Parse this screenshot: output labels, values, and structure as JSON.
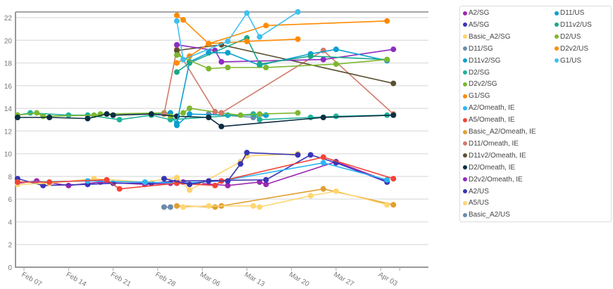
{
  "chart_data": {
    "type": "line",
    "ylim": [
      0,
      22
    ],
    "yticks": [
      0,
      2,
      4,
      6,
      8,
      10,
      12,
      14,
      16,
      18,
      20,
      22
    ],
    "xticks": [
      "Feb 07",
      "Feb 14",
      "Feb 21",
      "Feb 28",
      "Mar 06",
      "Mar 13",
      "Mar 20",
      "Mar 27",
      "Apr 03"
    ],
    "grid": true,
    "legend_position": "right",
    "series": [
      {
        "name": "A2/SG",
        "color": "#9c27b0",
        "points": [
          [
            "Feb 06",
            7.4
          ],
          [
            "Feb 09",
            7.6
          ],
          [
            "Feb 14",
            7.2
          ],
          [
            "Feb 19",
            7.5
          ],
          [
            "Feb 26",
            7.3
          ],
          [
            "Mar 01",
            7.4
          ],
          [
            "Mar 03",
            7.5
          ],
          [
            "Mar 10",
            7.2
          ],
          [
            "Mar 15",
            7.5
          ],
          [
            "Mar 16",
            7.3
          ],
          [
            "Mar 27",
            9.3
          ],
          [
            "Apr 04",
            7.6
          ]
        ]
      },
      {
        "name": "A5/SG",
        "color": "#3a35b8",
        "points": [
          [
            "Feb 06",
            7.8
          ],
          [
            "Feb 10",
            7.2
          ],
          [
            "Feb 17",
            7.3
          ],
          [
            "Feb 21",
            7.4
          ],
          [
            "Feb 27",
            7.4
          ],
          [
            "Mar 02",
            7.6
          ],
          [
            "Mar 16",
            7.7
          ],
          [
            "Mar 23",
            9.9
          ],
          [
            "Mar 27",
            9.2
          ],
          [
            "Apr 04",
            7.5
          ]
        ]
      },
      {
        "name": "Basic_A2/SG",
        "color": "#ffd36b",
        "points": [
          [
            "Feb 06",
            7.3
          ],
          [
            "Feb 11",
            7.4
          ],
          [
            "Feb 18",
            7.8
          ],
          [
            "Feb 26",
            7.5
          ],
          [
            "Mar 02",
            7.9
          ],
          [
            "Mar 04",
            6.8
          ],
          [
            "Mar 12",
            9.3
          ],
          [
            "Mar 13",
            9.8
          ],
          [
            "Mar 21",
            10.0
          ]
        ]
      },
      {
        "name": "D11/SG",
        "color": "#6a8caf",
        "points": [
          [
            "Mar 07",
            13.5
          ],
          [
            "Mar 14",
            13.2
          ],
          [
            "Mar 16",
            13.4
          ]
        ]
      },
      {
        "name": "D11v2/SG",
        "color": "#0a9fd0",
        "points": [
          [
            "Feb 27",
            13.5
          ],
          [
            "Mar 01",
            13.6
          ],
          [
            "Mar 02",
            12.5
          ],
          [
            "Mar 04",
            13.5
          ],
          [
            "Mar 10",
            13.4
          ],
          [
            "Mar 16",
            13.4
          ]
        ]
      },
      {
        "name": "D2/SG",
        "color": "#1fb39a",
        "points": [
          [
            "Feb 06",
            13.4
          ],
          [
            "Feb 08",
            13.6
          ],
          [
            "Feb 14",
            13.4
          ],
          [
            "Feb 17",
            13.4
          ],
          [
            "Feb 22",
            13.0
          ],
          [
            "Feb 27",
            13.4
          ],
          [
            "Mar 01",
            13.0
          ],
          [
            "Mar 14",
            13.5
          ],
          [
            "Mar 15",
            13.0
          ],
          [
            "Mar 23",
            13.2
          ],
          [
            "Mar 27",
            13.3
          ],
          [
            "Apr 04",
            13.4
          ]
        ]
      },
      {
        "name": "D2v2/SG",
        "color": "#7cb82f",
        "points": [
          [
            "Feb 06",
            13.4
          ],
          [
            "Feb 09",
            13.6
          ],
          [
            "Feb 10",
            13.3
          ],
          [
            "Feb 18",
            13.4
          ],
          [
            "Feb 19",
            13.5
          ],
          [
            "Feb 29",
            13.6
          ],
          [
            "Mar 01",
            13.3
          ],
          [
            "Mar 03",
            13.6
          ],
          [
            "Mar 04",
            14.0
          ],
          [
            "Mar 09",
            13.6
          ],
          [
            "Mar 12",
            13.4
          ],
          [
            "Mar 15",
            13.5
          ],
          [
            "Mar 21",
            13.6
          ]
        ]
      },
      {
        "name": "G1/SG",
        "color": "#ff8a00",
        "points": [
          [
            "Mar 02",
            22.2
          ],
          [
            "Mar 03",
            21.8
          ],
          [
            "Mar 07",
            19.7
          ],
          [
            "Mar 16",
            21.3
          ],
          [
            "Apr 04",
            21.7
          ]
        ]
      },
      {
        "name": "A2/Omeath, IE",
        "color": "#29b6f6",
        "points": [
          [
            "Feb 06",
            7.5
          ],
          [
            "Feb 17",
            7.6
          ],
          [
            "Feb 26",
            7.5
          ],
          [
            "Mar 02",
            7.4
          ],
          [
            "Mar 09",
            7.6
          ],
          [
            "Mar 25",
            9.2
          ],
          [
            "Apr 04",
            7.7
          ]
        ]
      },
      {
        "name": "A5/Omeath, IE",
        "color": "#f44336",
        "points": [
          [
            "Feb 06",
            7.5
          ],
          [
            "Feb 11",
            7.5
          ],
          [
            "Feb 20",
            7.7
          ],
          [
            "Feb 22",
            6.9
          ],
          [
            "Mar 02",
            7.4
          ],
          [
            "Mar 08",
            7.2
          ],
          [
            "Mar 09",
            7.6
          ],
          [
            "Mar 25",
            9.7
          ],
          [
            "Apr 05",
            7.8
          ]
        ]
      },
      {
        "name": "Basic_A2/Omeath, IE",
        "color": "#e0a030",
        "points": [
          [
            "Mar 02",
            5.4
          ],
          [
            "Mar 08",
            5.3
          ],
          [
            "Mar 09",
            5.4
          ],
          [
            "Mar 25",
            6.9
          ],
          [
            "Apr 05",
            5.5
          ]
        ]
      },
      {
        "name": "D11/Omeath, IE",
        "color": "#d07a6a",
        "points": [
          [
            "Feb 29",
            13.5
          ],
          [
            "Mar 02",
            19.2
          ],
          [
            "Mar 08",
            13.7
          ],
          [
            "Mar 09",
            13.6
          ],
          [
            "Mar 25",
            19.1
          ],
          [
            "Apr 05",
            13.5
          ]
        ]
      },
      {
        "name": "D11v2/Omeath, IE",
        "color": "#5a5030",
        "points": [
          [
            "Mar 02",
            19.1
          ],
          [
            "Mar 09",
            19.6
          ],
          [
            "Apr 05",
            16.2
          ]
        ]
      },
      {
        "name": "D2/Omeath, IE",
        "color": "#0b2d40",
        "points": [
          [
            "Feb 06",
            13.2
          ],
          [
            "Feb 11",
            13.2
          ],
          [
            "Feb 17",
            13.1
          ],
          [
            "Feb 20",
            13.5
          ],
          [
            "Feb 21",
            13.4
          ],
          [
            "Feb 27",
            13.5
          ],
          [
            "Mar 02",
            13.3
          ],
          [
            "Mar 07",
            13.2
          ],
          [
            "Mar 09",
            12.4
          ],
          [
            "Mar 25",
            13.2
          ],
          [
            "Apr 05",
            13.4
          ]
        ]
      },
      {
        "name": "D2v2/Omeath, IE",
        "color": "#8e2cc0",
        "points": [
          [
            "Mar 02",
            19.6
          ],
          [
            "Mar 08",
            19.1
          ],
          [
            "Mar 09",
            18.1
          ],
          [
            "Mar 25",
            18.3
          ],
          [
            "Apr 05",
            19.2
          ]
        ]
      },
      {
        "name": "A2/US",
        "color": "#3535b0",
        "points": [
          [
            "Feb 29",
            7.8
          ],
          [
            "Mar 04",
            7.3
          ],
          [
            "Mar 07",
            7.6
          ],
          [
            "Mar 10",
            7.6
          ],
          [
            "Mar 12",
            9.1
          ],
          [
            "Mar 13",
            10.1
          ],
          [
            "Mar 21",
            9.9
          ]
        ]
      },
      {
        "name": "A5/US",
        "color": "#ffd770",
        "points": [
          [
            "Mar 03",
            5.3
          ],
          [
            "Mar 07",
            5.4
          ],
          [
            "Mar 14",
            5.4
          ],
          [
            "Mar 15",
            5.3
          ],
          [
            "Mar 23",
            6.3
          ],
          [
            "Mar 27",
            6.7
          ],
          [
            "Apr 04",
            5.5
          ]
        ]
      },
      {
        "name": "Basic_A2/US",
        "color": "#6a8caf",
        "points": [
          [
            "Feb 29",
            5.3
          ],
          [
            "Mar 01",
            5.3
          ]
        ]
      },
      {
        "name": "D11/US",
        "color": "#0a9fd0",
        "points": [
          [
            "Mar 02",
            12.7
          ],
          [
            "Mar 04",
            18.1
          ],
          [
            "Mar 07",
            18.9
          ],
          [
            "Mar 10",
            18.9
          ],
          [
            "Mar 15",
            17.8
          ],
          [
            "Mar 23",
            18.8
          ],
          [
            "Mar 27",
            19.2
          ],
          [
            "Apr 04",
            18.2
          ]
        ]
      },
      {
        "name": "D11v2/US",
        "color": "#1aa88a",
        "points": [
          [
            "Mar 02",
            17.2
          ],
          [
            "Mar 04",
            18.0
          ],
          [
            "Mar 13",
            20.2
          ],
          [
            "Mar 15",
            17.9
          ],
          [
            "Mar 23",
            18.6
          ],
          [
            "Apr 04",
            18.3
          ]
        ]
      },
      {
        "name": "D2/US",
        "color": "#7cb82f",
        "points": [
          [
            "Mar 02",
            18.7
          ],
          [
            "Mar 07",
            17.5
          ],
          [
            "Mar 10",
            17.6
          ],
          [
            "Mar 16",
            17.6
          ],
          [
            "Mar 27",
            17.9
          ],
          [
            "Apr 04",
            18.3
          ]
        ]
      },
      {
        "name": "D2v2/US",
        "color": "#ff8a00",
        "points": [
          [
            "Mar 02",
            18.0
          ],
          [
            "Mar 04",
            18.6
          ],
          [
            "Mar 07",
            19.7
          ],
          [
            "Mar 13",
            19.9
          ],
          [
            "Mar 21",
            20.1
          ]
        ]
      },
      {
        "name": "G1/US",
        "color": "#3fc0f0",
        "points": [
          [
            "Mar 02",
            21.7
          ],
          [
            "Mar 03",
            18.3
          ],
          [
            "Mar 10",
            19.9
          ],
          [
            "Mar 13",
            22.4
          ],
          [
            "Mar 15",
            20.3
          ],
          [
            "Mar 21",
            22.5
          ]
        ]
      }
    ]
  }
}
